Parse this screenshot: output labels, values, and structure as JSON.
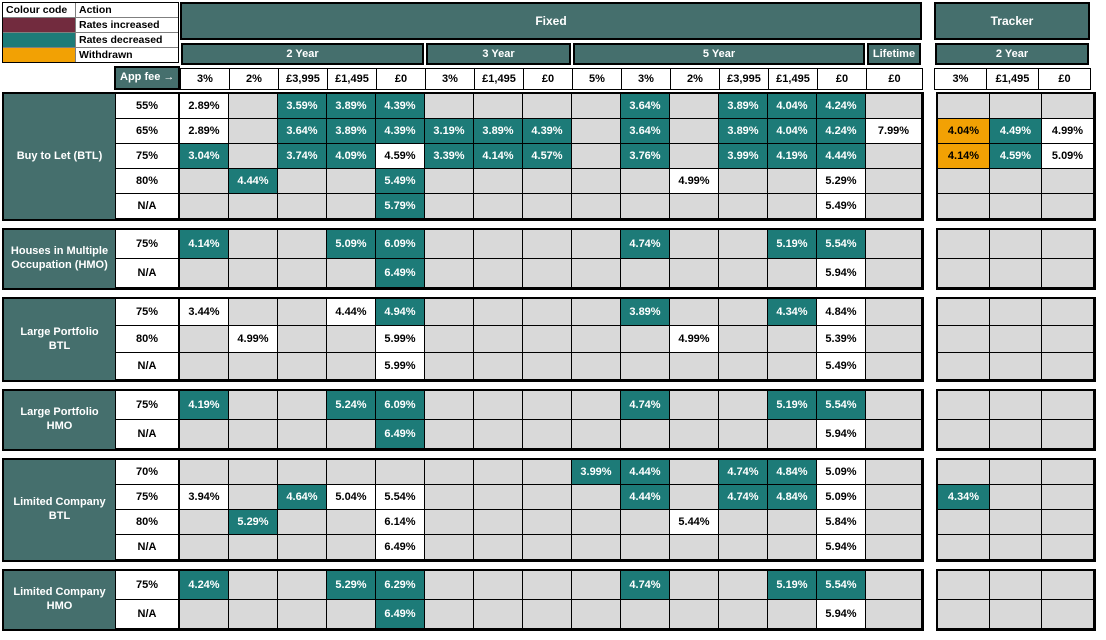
{
  "colors": {
    "header_teal": "#456F6D",
    "cell_teal": "#1D7B78",
    "cell_orange": "#F2A104",
    "legend_maroon": "#722B3E",
    "empty_grey": "#D9D9D9",
    "border_black": "#000000"
  },
  "legend": {
    "columns": [
      "Colour code",
      "Action"
    ],
    "items": [
      {
        "label": "Rates increased",
        "color": "#722B3E"
      },
      {
        "label": "Rates decreased",
        "color": "#1D7B78"
      },
      {
        "label": "Withdrawn",
        "color": "#F2A104"
      }
    ]
  },
  "header": {
    "app_fee_label": "App fee →",
    "fixed": {
      "title": "Fixed",
      "groups": [
        {
          "label": "2 Year",
          "fees": [
            "3%",
            "2%",
            "£3,995",
            "£1,495",
            "£0"
          ]
        },
        {
          "label": "3 Year",
          "fees": [
            "3%",
            "£1,495",
            "£0"
          ]
        },
        {
          "label": "5 Year",
          "fees": [
            "5%",
            "3%",
            "2%",
            "£3,995",
            "£1,495",
            "£0"
          ]
        },
        {
          "label": "Lifetime",
          "fees": [
            "£0"
          ]
        }
      ]
    },
    "tracker": {
      "title": "Tracker",
      "groups": [
        {
          "label": "2 Year",
          "fees": [
            "3%",
            "£1,495",
            "£0"
          ]
        }
      ]
    }
  },
  "cell_style_key": {
    "w": "white background, black text",
    "t": "teal background (rates decreased), white text",
    "o": "orange background (withdrawn), black text",
    "null": "empty grey cell"
  },
  "fixed_column_order": [
    "2Y 3%",
    "2Y 2%",
    "2Y £3,995",
    "2Y £1,495",
    "2Y £0",
    "3Y 3%",
    "3Y £1,495",
    "3Y £0",
    "5Y 5%",
    "5Y 3%",
    "5Y 2%",
    "5Y £3,995",
    "5Y £1,495",
    "5Y £0",
    "Lifetime £0"
  ],
  "tracker_column_order": [
    "2Y 3%",
    "2Y £1,495",
    "2Y £0"
  ],
  "sections": [
    {
      "label": "Buy to Let (BTL)",
      "rows": [
        {
          "ltv": "55%",
          "fixed": [
            [
              "2.89%",
              "w"
            ],
            null,
            [
              "3.59%",
              "t"
            ],
            [
              "3.89%",
              "t"
            ],
            [
              "4.39%",
              "t"
            ],
            null,
            null,
            null,
            null,
            [
              "3.64%",
              "t"
            ],
            null,
            [
              "3.89%",
              "t"
            ],
            [
              "4.04%",
              "t"
            ],
            [
              "4.24%",
              "t"
            ],
            null
          ],
          "tracker": [
            null,
            null,
            null
          ]
        },
        {
          "ltv": "65%",
          "fixed": [
            [
              "2.89%",
              "w"
            ],
            null,
            [
              "3.64%",
              "t"
            ],
            [
              "3.89%",
              "t"
            ],
            [
              "4.39%",
              "t"
            ],
            [
              "3.19%",
              "t"
            ],
            [
              "3.89%",
              "t"
            ],
            [
              "4.39%",
              "t"
            ],
            null,
            [
              "3.64%",
              "t"
            ],
            null,
            [
              "3.89%",
              "t"
            ],
            [
              "4.04%",
              "t"
            ],
            [
              "4.24%",
              "t"
            ],
            [
              "7.99%",
              "w"
            ]
          ],
          "tracker": [
            [
              "4.04%",
              "o"
            ],
            [
              "4.49%",
              "t"
            ],
            [
              "4.99%",
              "w"
            ]
          ]
        },
        {
          "ltv": "75%",
          "fixed": [
            [
              "3.04%",
              "t"
            ],
            null,
            [
              "3.74%",
              "t"
            ],
            [
              "4.09%",
              "t"
            ],
            [
              "4.59%",
              "w"
            ],
            [
              "3.39%",
              "t"
            ],
            [
              "4.14%",
              "t"
            ],
            [
              "4.57%",
              "t"
            ],
            null,
            [
              "3.76%",
              "t"
            ],
            null,
            [
              "3.99%",
              "t"
            ],
            [
              "4.19%",
              "t"
            ],
            [
              "4.44%",
              "t"
            ],
            null
          ],
          "tracker": [
            [
              "4.14%",
              "o"
            ],
            [
              "4.59%",
              "t"
            ],
            [
              "5.09%",
              "w"
            ]
          ]
        },
        {
          "ltv": "80%",
          "fixed": [
            null,
            [
              "4.44%",
              "t"
            ],
            null,
            null,
            [
              "5.49%",
              "t"
            ],
            null,
            null,
            null,
            null,
            null,
            [
              "4.99%",
              "w"
            ],
            null,
            null,
            [
              "5.29%",
              "w"
            ],
            null
          ],
          "tracker": [
            null,
            null,
            null
          ]
        },
        {
          "ltv": "N/A",
          "fixed": [
            null,
            null,
            null,
            null,
            [
              "5.79%",
              "t"
            ],
            null,
            null,
            null,
            null,
            null,
            null,
            null,
            null,
            [
              "5.49%",
              "w"
            ],
            null
          ],
          "tracker": [
            null,
            null,
            null
          ]
        }
      ]
    },
    {
      "label": "Houses in Multiple Occupation (HMO)",
      "rows": [
        {
          "ltv": "75%",
          "fixed": [
            [
              "4.14%",
              "t"
            ],
            null,
            null,
            [
              "5.09%",
              "t"
            ],
            [
              "6.09%",
              "t"
            ],
            null,
            null,
            null,
            null,
            [
              "4.74%",
              "t"
            ],
            null,
            null,
            [
              "5.19%",
              "t"
            ],
            [
              "5.54%",
              "t"
            ],
            null
          ],
          "tracker": [
            null,
            null,
            null
          ]
        },
        {
          "ltv": "N/A",
          "fixed": [
            null,
            null,
            null,
            null,
            [
              "6.49%",
              "t"
            ],
            null,
            null,
            null,
            null,
            null,
            null,
            null,
            null,
            [
              "5.94%",
              "w"
            ],
            null
          ],
          "tracker": [
            null,
            null,
            null
          ]
        }
      ]
    },
    {
      "label": "Large Portfolio BTL",
      "rows": [
        {
          "ltv": "75%",
          "fixed": [
            [
              "3.44%",
              "w"
            ],
            null,
            null,
            [
              "4.44%",
              "w"
            ],
            [
              "4.94%",
              "t"
            ],
            null,
            null,
            null,
            null,
            [
              "3.89%",
              "t"
            ],
            null,
            null,
            [
              "4.34%",
              "t"
            ],
            [
              "4.84%",
              "w"
            ],
            null
          ],
          "tracker": [
            null,
            null,
            null
          ]
        },
        {
          "ltv": "80%",
          "fixed": [
            null,
            [
              "4.99%",
              "w"
            ],
            null,
            null,
            [
              "5.99%",
              "w"
            ],
            null,
            null,
            null,
            null,
            null,
            [
              "4.99%",
              "w"
            ],
            null,
            null,
            [
              "5.39%",
              "w"
            ],
            null
          ],
          "tracker": [
            null,
            null,
            null
          ]
        },
        {
          "ltv": "N/A",
          "fixed": [
            null,
            null,
            null,
            null,
            [
              "5.99%",
              "w"
            ],
            null,
            null,
            null,
            null,
            null,
            null,
            null,
            null,
            [
              "5.49%",
              "w"
            ],
            null
          ],
          "tracker": [
            null,
            null,
            null
          ]
        }
      ]
    },
    {
      "label": "Large Portfolio HMO",
      "rows": [
        {
          "ltv": "75%",
          "fixed": [
            [
              "4.19%",
              "t"
            ],
            null,
            null,
            [
              "5.24%",
              "t"
            ],
            [
              "6.09%",
              "t"
            ],
            null,
            null,
            null,
            null,
            [
              "4.74%",
              "t"
            ],
            null,
            null,
            [
              "5.19%",
              "t"
            ],
            [
              "5.54%",
              "t"
            ],
            null
          ],
          "tracker": [
            null,
            null,
            null
          ]
        },
        {
          "ltv": "N/A",
          "fixed": [
            null,
            null,
            null,
            null,
            [
              "6.49%",
              "t"
            ],
            null,
            null,
            null,
            null,
            null,
            null,
            null,
            null,
            [
              "5.94%",
              "w"
            ],
            null
          ],
          "tracker": [
            null,
            null,
            null
          ]
        }
      ]
    },
    {
      "label": "Limited Company BTL",
      "rows": [
        {
          "ltv": "70%",
          "fixed": [
            null,
            null,
            null,
            null,
            null,
            null,
            null,
            null,
            [
              "3.99%",
              "t"
            ],
            [
              "4.44%",
              "t"
            ],
            null,
            [
              "4.74%",
              "t"
            ],
            [
              "4.84%",
              "t"
            ],
            [
              "5.09%",
              "w"
            ],
            null
          ],
          "tracker": [
            null,
            null,
            null
          ]
        },
        {
          "ltv": "75%",
          "fixed": [
            [
              "3.94%",
              "w"
            ],
            null,
            [
              "4.64%",
              "t"
            ],
            [
              "5.04%",
              "w"
            ],
            [
              "5.54%",
              "w"
            ],
            null,
            null,
            null,
            null,
            [
              "4.44%",
              "t"
            ],
            null,
            [
              "4.74%",
              "t"
            ],
            [
              "4.84%",
              "t"
            ],
            [
              "5.09%",
              "w"
            ],
            null
          ],
          "tracker": [
            [
              "4.34%",
              "t"
            ],
            null,
            null
          ]
        },
        {
          "ltv": "80%",
          "fixed": [
            null,
            [
              "5.29%",
              "t"
            ],
            null,
            null,
            [
              "6.14%",
              "w"
            ],
            null,
            null,
            null,
            null,
            null,
            [
              "5.44%",
              "w"
            ],
            null,
            null,
            [
              "5.84%",
              "w"
            ],
            null
          ],
          "tracker": [
            null,
            null,
            null
          ]
        },
        {
          "ltv": "N/A",
          "fixed": [
            null,
            null,
            null,
            null,
            [
              "6.49%",
              "w"
            ],
            null,
            null,
            null,
            null,
            null,
            null,
            null,
            null,
            [
              "5.94%",
              "w"
            ],
            null
          ],
          "tracker": [
            null,
            null,
            null
          ]
        }
      ]
    },
    {
      "label": "Limited Company HMO",
      "rows": [
        {
          "ltv": "75%",
          "fixed": [
            [
              "4.24%",
              "t"
            ],
            null,
            null,
            [
              "5.29%",
              "t"
            ],
            [
              "6.29%",
              "t"
            ],
            null,
            null,
            null,
            null,
            [
              "4.74%",
              "t"
            ],
            null,
            null,
            [
              "5.19%",
              "t"
            ],
            [
              "5.54%",
              "t"
            ],
            null
          ],
          "tracker": [
            null,
            null,
            null
          ]
        },
        {
          "ltv": "N/A",
          "fixed": [
            null,
            null,
            null,
            null,
            [
              "6.49%",
              "t"
            ],
            null,
            null,
            null,
            null,
            null,
            null,
            null,
            null,
            [
              "5.94%",
              "w"
            ],
            null
          ],
          "tracker": [
            null,
            null,
            null
          ]
        }
      ]
    }
  ]
}
